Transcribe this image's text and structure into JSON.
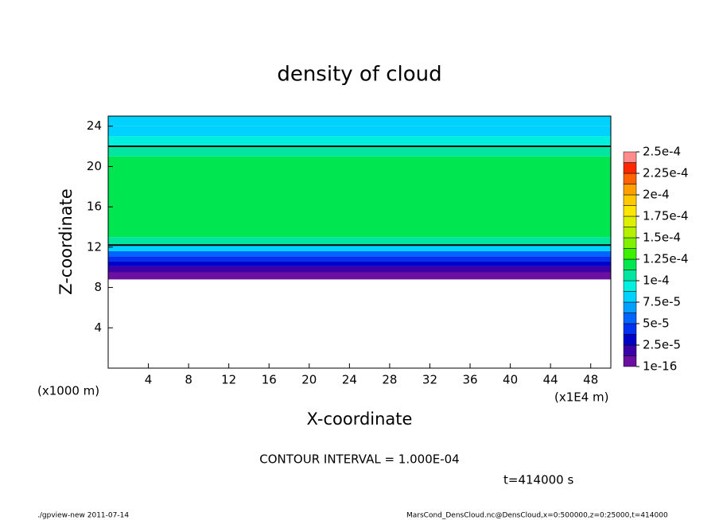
{
  "chart_data": {
    "type": "contour",
    "title": "density of cloud",
    "xlabel": "X-coordinate",
    "ylabel": "Z-coordinate",
    "x_unit": "(x1E4 m)",
    "y_unit": "(x1000 m)",
    "xlim": [
      0,
      50
    ],
    "xticks": [
      4,
      8,
      12,
      16,
      20,
      24,
      28,
      32,
      36,
      40,
      44,
      48
    ],
    "ylim": [
      0,
      25
    ],
    "yticks": [
      4,
      8,
      12,
      16,
      20,
      24
    ],
    "z_bins": [
      8.8,
      9.5,
      10.1,
      10.6,
      11.1,
      11.6,
      12.2,
      13,
      21,
      22,
      23,
      24,
      25
    ],
    "values": [
      5e-06,
      2e-05,
      3e-05,
      4.5e-05,
      6e-05,
      8e-05,
      0.000105,
      0.000115,
      0.000105,
      9e-05,
      8e-05,
      7.6e-05
    ],
    "contour_value": 0.0001,
    "contour_text": "CONTOUR INTERVAL = 1.000E-04",
    "time_text": "t=414000 s",
    "colorbar": {
      "levels": [
        {
          "value": 1e-16,
          "label": "1e-16"
        },
        {
          "value": 2.5e-05,
          "label": "2.5e-5"
        },
        {
          "value": 5e-05,
          "label": "5e-5"
        },
        {
          "value": 7.5e-05,
          "label": "7.5e-5"
        },
        {
          "value": 0.0001,
          "label": "1e-4"
        },
        {
          "value": 0.000125,
          "label": "1.25e-4"
        },
        {
          "value": 0.00015,
          "label": "1.5e-4"
        },
        {
          "value": 0.000175,
          "label": "1.75e-4"
        },
        {
          "value": 0.0002,
          "label": "2e-4"
        },
        {
          "value": 0.000225,
          "label": "2.25e-4"
        },
        {
          "value": 0.00025,
          "label": "2.5e-4"
        }
      ],
      "colors": [
        "#6a0fa0",
        "#3c00a8",
        "#0000c8",
        "#0030f0",
        "#0064ff",
        "#00a0ff",
        "#00d2ff",
        "#00f0e0",
        "#00e6a0",
        "#00e650",
        "#3cf000",
        "#80f000",
        "#b4f000",
        "#dcf000",
        "#ffe600",
        "#ffc800",
        "#ffa000",
        "#ff6400",
        "#ff2800",
        "#ff8c8c"
      ]
    },
    "footer_left": "./gpview-new   2011-07-14",
    "footer_right": "MarsCond_DensCloud.nc@DensCloud,x=0:500000,z=0:25000,t=414000"
  }
}
